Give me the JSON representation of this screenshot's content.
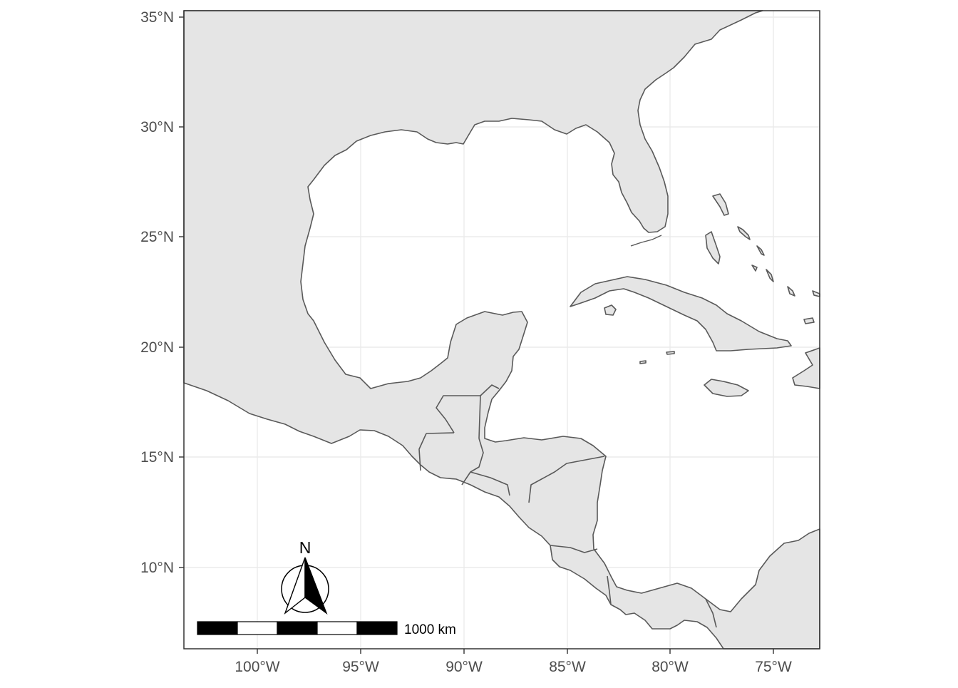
{
  "map": {
    "y_ticks": [
      {
        "value": 35,
        "label": "35°N"
      },
      {
        "value": 30,
        "label": "30°N"
      },
      {
        "value": 25,
        "label": "25°N"
      },
      {
        "value": 20,
        "label": "20°N"
      },
      {
        "value": 15,
        "label": "15°N"
      },
      {
        "value": 10,
        "label": "10°N"
      }
    ],
    "x_ticks": [
      {
        "value": -100,
        "label": "100°W"
      },
      {
        "value": -95,
        "label": "95°W"
      },
      {
        "value": -90,
        "label": "90°W"
      },
      {
        "value": -85,
        "label": "85°W"
      },
      {
        "value": -80,
        "label": "80°W"
      },
      {
        "value": -75,
        "label": "75°W"
      }
    ],
    "lon_range": [
      -103.5,
      -72.8
    ],
    "lat_range": [
      6.5,
      35.3
    ],
    "grid": true,
    "land_color": "#e5e5e5",
    "border_color": "#595959",
    "grid_color": "#ebebeb",
    "scale_bar": {
      "label": "1000 km",
      "segments": 5,
      "placement": "bottom-left"
    },
    "north_arrow": {
      "label": "N",
      "placement": "bottom-left"
    }
  }
}
